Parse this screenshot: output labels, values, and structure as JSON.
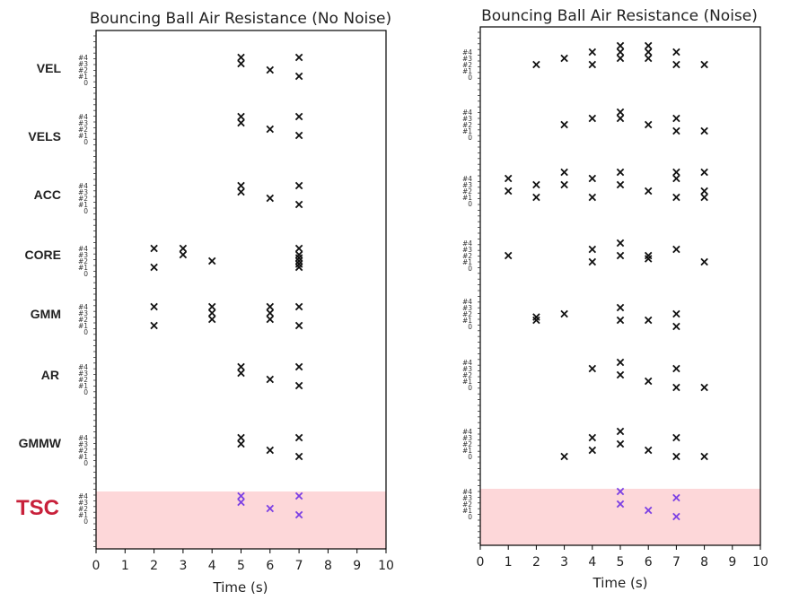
{
  "row_labels": [
    {
      "id": "vel",
      "label": "VEL"
    },
    {
      "id": "vels",
      "label": "VELS"
    },
    {
      "id": "acc",
      "label": "ACC"
    },
    {
      "id": "core",
      "label": "CORE"
    },
    {
      "id": "gmm",
      "label": "GMM"
    },
    {
      "id": "ar",
      "label": "AR"
    },
    {
      "id": "gmmw",
      "label": "GMMW"
    },
    {
      "id": "tsc",
      "label": "TSC"
    }
  ],
  "colors": {
    "marker": "#111111",
    "tsc_marker": "#7b3fe4",
    "tsc_band": "#fdd7d9",
    "tsc_label": "#c8203a"
  },
  "chart_data": [
    {
      "type": "scatter",
      "title": "Bouncing Ball Air Resistance (No Noise)",
      "xlabel": "Time (s)",
      "xlim": [
        0,
        10
      ],
      "x_ticks": [
        "0",
        "1",
        "2",
        "3",
        "4",
        "5",
        "6",
        "7",
        "8",
        "9",
        "10"
      ],
      "row_ytick_labels": [
        "#4",
        "#3",
        "#2",
        "#1",
        "0"
      ],
      "rows": [
        {
          "name": "VEL",
          "points": [
            [
              5,
              4
            ],
            [
              5,
              3
            ],
            [
              6,
              2
            ],
            [
              7,
              4
            ],
            [
              7,
              1
            ]
          ]
        },
        {
          "name": "VELS",
          "points": [
            [
              5,
              4
            ],
            [
              5,
              3
            ],
            [
              6,
              2
            ],
            [
              7,
              4
            ],
            [
              7,
              1
            ]
          ]
        },
        {
          "name": "ACC",
          "points": [
            [
              5,
              4
            ],
            [
              5,
              3
            ],
            [
              6,
              2
            ],
            [
              7,
              4
            ],
            [
              7,
              1
            ]
          ]
        },
        {
          "name": "CORE",
          "points": [
            [
              2,
              4
            ],
            [
              2,
              1
            ],
            [
              3,
              4
            ],
            [
              3,
              3
            ],
            [
              4,
              2
            ],
            [
              7,
              4
            ],
            [
              7,
              3
            ],
            [
              7,
              2.5
            ],
            [
              7,
              2
            ],
            [
              7,
              1.5
            ],
            [
              7,
              1
            ]
          ]
        },
        {
          "name": "GMM",
          "points": [
            [
              2,
              4
            ],
            [
              2,
              1
            ],
            [
              4,
              4
            ],
            [
              4,
              3
            ],
            [
              4,
              2
            ],
            [
              6,
              4
            ],
            [
              6,
              3
            ],
            [
              6,
              2
            ],
            [
              7,
              4
            ],
            [
              7,
              1
            ]
          ]
        },
        {
          "name": "AR",
          "points": [
            [
              5,
              4
            ],
            [
              5,
              3
            ],
            [
              6,
              2
            ],
            [
              7,
              4
            ],
            [
              7,
              1
            ]
          ]
        },
        {
          "name": "GMMW",
          "points": [
            [
              5,
              4
            ],
            [
              5,
              3
            ],
            [
              6,
              2
            ],
            [
              7,
              4
            ],
            [
              7,
              1
            ]
          ]
        },
        {
          "name": "TSC",
          "points": [
            [
              5,
              4
            ],
            [
              5,
              3
            ],
            [
              6,
              2
            ],
            [
              7,
              4
            ],
            [
              7,
              1
            ]
          ]
        }
      ]
    },
    {
      "type": "scatter",
      "title": "Bouncing Ball Air Resistance (Noise)",
      "xlabel": "Time (s)",
      "xlim": [
        0,
        10
      ],
      "x_ticks": [
        "0",
        "1",
        "2",
        "3",
        "4",
        "5",
        "6",
        "7",
        "8",
        "9",
        "10"
      ],
      "row_ytick_labels": [
        "#4",
        "#3",
        "#2",
        "#1",
        "0"
      ],
      "rows": [
        {
          "name": "VEL",
          "points": [
            [
              2,
              2
            ],
            [
              3,
              3
            ],
            [
              4,
              4
            ],
            [
              4,
              2
            ],
            [
              5,
              5
            ],
            [
              5,
              4
            ],
            [
              5,
              3
            ],
            [
              6,
              5
            ],
            [
              6,
              4
            ],
            [
              6,
              3
            ],
            [
              7,
              4
            ],
            [
              7,
              2
            ],
            [
              8,
              2
            ]
          ]
        },
        {
          "name": "VELS",
          "points": [
            [
              3,
              2
            ],
            [
              4,
              3
            ],
            [
              5,
              4
            ],
            [
              5,
              3
            ],
            [
              6,
              2
            ],
            [
              7,
              3
            ],
            [
              7,
              1
            ],
            [
              8,
              1
            ]
          ]
        },
        {
          "name": "ACC",
          "points": [
            [
              1,
              4
            ],
            [
              1,
              2
            ],
            [
              2,
              3
            ],
            [
              2,
              1
            ],
            [
              3,
              5
            ],
            [
              3,
              3
            ],
            [
              4,
              4
            ],
            [
              4,
              1
            ],
            [
              5,
              5
            ],
            [
              5,
              3
            ],
            [
              6,
              2
            ],
            [
              7,
              5
            ],
            [
              7,
              4
            ],
            [
              7,
              1
            ],
            [
              8,
              5
            ],
            [
              8,
              2
            ],
            [
              8,
              1
            ]
          ]
        },
        {
          "name": "CORE",
          "points": [
            [
              1,
              2
            ],
            [
              4,
              3
            ],
            [
              4,
              1
            ],
            [
              5,
              4
            ],
            [
              5,
              2
            ],
            [
              6,
              2
            ],
            [
              6,
              1.5
            ],
            [
              7,
              3
            ],
            [
              8,
              1
            ]
          ]
        },
        {
          "name": "GMM",
          "points": [
            [
              2,
              1.5
            ],
            [
              2,
              1
            ],
            [
              3,
              2
            ],
            [
              5,
              3
            ],
            [
              5,
              1
            ],
            [
              6,
              1
            ],
            [
              7,
              2
            ],
            [
              7,
              0
            ]
          ]
        },
        {
          "name": "AR",
          "points": [
            [
              4,
              3
            ],
            [
              5,
              4
            ],
            [
              5,
              2
            ],
            [
              6,
              1
            ],
            [
              7,
              3
            ],
            [
              7,
              0
            ],
            [
              8,
              0
            ]
          ]
        },
        {
          "name": "GMMW",
          "points": [
            [
              3,
              0
            ],
            [
              4,
              3
            ],
            [
              4,
              1
            ],
            [
              5,
              4
            ],
            [
              5,
              2
            ],
            [
              6,
              1
            ],
            [
              7,
              3
            ],
            [
              7,
              0
            ],
            [
              8,
              0
            ]
          ]
        },
        {
          "name": "TSC",
          "points": [
            [
              5,
              4
            ],
            [
              5,
              2
            ],
            [
              6,
              1
            ],
            [
              7,
              3
            ],
            [
              7,
              0
            ]
          ]
        }
      ]
    }
  ]
}
